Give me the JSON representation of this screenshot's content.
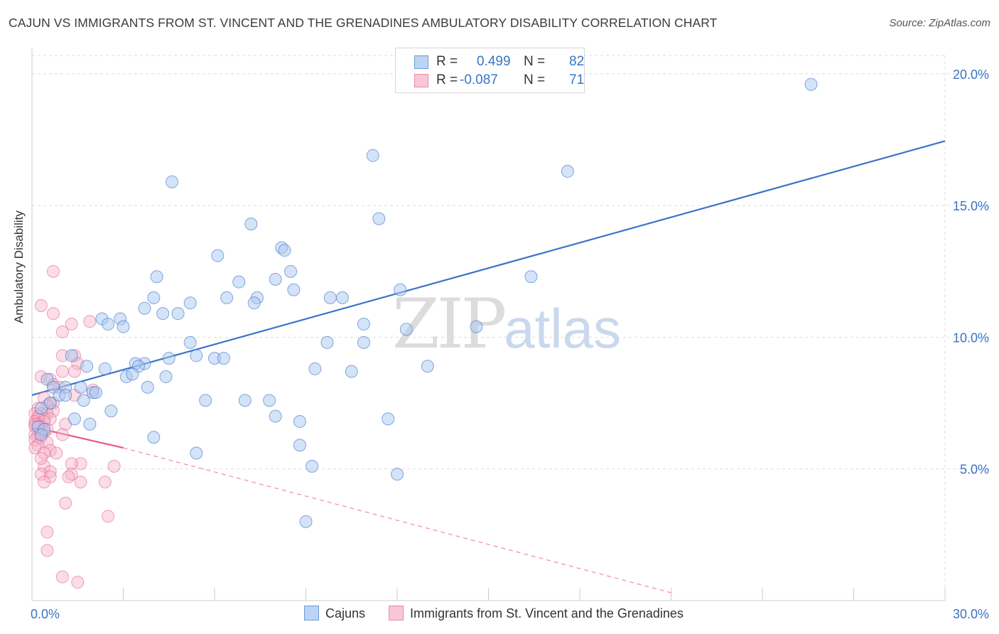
{
  "title": "CAJUN VS IMMIGRANTS FROM ST. VINCENT AND THE GRENADINES AMBULATORY DISABILITY CORRELATION CHART",
  "source": "Source: ZipAtlas.com",
  "watermark": {
    "zip": "ZIP",
    "atlas": "atlas"
  },
  "colors": {
    "blue": "#3a73c8",
    "blue_fill": "#a9c8f0",
    "pink": "#e8588a",
    "pink_fill": "#f5b3c8",
    "grid": "#dddddd"
  },
  "legend": {
    "r_label": "R =",
    "n_label": "N =",
    "rows": [
      {
        "r": "0.499",
        "n": "82"
      },
      {
        "r": "-0.087",
        "n": "71"
      }
    ]
  },
  "chart_data": {
    "type": "scatter",
    "title": "CAJUN VS IMMIGRANTS FROM ST. VINCENT AND THE GRENADINES AMBULATORY DISABILITY CORRELATION CHART",
    "xlabel": "",
    "ylabel": "Ambulatory Disability",
    "xlim": [
      0,
      30
    ],
    "ylim": [
      0,
      20.7
    ],
    "x_tick_labels": [
      "0.0%",
      "30.0%"
    ],
    "y_ticks": [
      5,
      10,
      15,
      20
    ],
    "y_tick_labels": [
      "5.0%",
      "10.0%",
      "15.0%",
      "20.0%"
    ],
    "grid": true,
    "legend_position": "bottom",
    "series": [
      {
        "name": "Cajuns",
        "color": "#3a73c8",
        "r": 0.499,
        "n": 82,
        "trend": {
          "x": [
            0,
            30
          ],
          "y": [
            7.8,
            17.45
          ],
          "style": "solid"
        },
        "points": [
          [
            25.6,
            19.6
          ],
          [
            11.2,
            16.9
          ],
          [
            17.6,
            16.3
          ],
          [
            4.6,
            15.9
          ],
          [
            11.4,
            14.5
          ],
          [
            7.2,
            14.3
          ],
          [
            8.2,
            13.4
          ],
          [
            8.3,
            13.3
          ],
          [
            6.1,
            13.1
          ],
          [
            8.5,
            12.5
          ],
          [
            4.1,
            12.3
          ],
          [
            8.0,
            12.2
          ],
          [
            16.4,
            12.3
          ],
          [
            6.8,
            12.1
          ],
          [
            12.1,
            11.8
          ],
          [
            8.6,
            11.8
          ],
          [
            4.0,
            11.5
          ],
          [
            5.2,
            11.3
          ],
          [
            6.4,
            11.5
          ],
          [
            7.4,
            11.5
          ],
          [
            7.3,
            11.3
          ],
          [
            9.8,
            11.5
          ],
          [
            10.2,
            11.5
          ],
          [
            3.7,
            11.1
          ],
          [
            4.3,
            10.9
          ],
          [
            4.8,
            10.9
          ],
          [
            2.3,
            10.7
          ],
          [
            2.9,
            10.7
          ],
          [
            2.5,
            10.5
          ],
          [
            3.0,
            10.4
          ],
          [
            10.9,
            10.5
          ],
          [
            14.6,
            10.4
          ],
          [
            12.3,
            10.3
          ],
          [
            5.2,
            9.8
          ],
          [
            9.7,
            9.8
          ],
          [
            10.9,
            9.8
          ],
          [
            5.4,
            9.3
          ],
          [
            6.0,
            9.2
          ],
          [
            6.3,
            9.2
          ],
          [
            4.5,
            9.2
          ],
          [
            1.3,
            9.3
          ],
          [
            3.7,
            9.0
          ],
          [
            3.4,
            9.0
          ],
          [
            3.5,
            8.9
          ],
          [
            1.8,
            8.9
          ],
          [
            2.4,
            8.8
          ],
          [
            9.3,
            8.8
          ],
          [
            10.5,
            8.7
          ],
          [
            13.0,
            8.9
          ],
          [
            3.1,
            8.5
          ],
          [
            3.3,
            8.6
          ],
          [
            4.4,
            8.5
          ],
          [
            0.5,
            8.4
          ],
          [
            0.7,
            8.1
          ],
          [
            1.1,
            8.1
          ],
          [
            1.6,
            8.1
          ],
          [
            3.8,
            8.1
          ],
          [
            2.0,
            7.9
          ],
          [
            2.1,
            7.9
          ],
          [
            0.9,
            7.8
          ],
          [
            1.1,
            7.8
          ],
          [
            1.7,
            7.6
          ],
          [
            5.7,
            7.6
          ],
          [
            7.0,
            7.6
          ],
          [
            7.8,
            7.6
          ],
          [
            0.6,
            7.5
          ],
          [
            0.3,
            7.3
          ],
          [
            2.6,
            7.2
          ],
          [
            1.4,
            6.9
          ],
          [
            8.0,
            7.0
          ],
          [
            8.8,
            6.8
          ],
          [
            11.7,
            6.9
          ],
          [
            1.9,
            6.7
          ],
          [
            0.2,
            6.6
          ],
          [
            0.4,
            6.5
          ],
          [
            4.0,
            6.2
          ],
          [
            8.8,
            5.9
          ],
          [
            5.4,
            5.6
          ],
          [
            9.2,
            5.1
          ],
          [
            12.0,
            4.8
          ],
          [
            9.0,
            3.0
          ],
          [
            0.3,
            6.3
          ]
        ]
      },
      {
        "name": "Immigrants from St. Vincent and the Grenadines",
        "color": "#e8588a",
        "r": -0.087,
        "n": 71,
        "trend_solid": {
          "x": [
            0,
            3.0
          ],
          "y": [
            6.6,
            5.8
          ]
        },
        "trend_dashed": {
          "x": [
            3.0,
            21.0
          ],
          "y": [
            5.8,
            0.3
          ]
        },
        "points": [
          [
            0.7,
            12.5
          ],
          [
            0.3,
            11.2
          ],
          [
            0.7,
            10.9
          ],
          [
            1.9,
            10.6
          ],
          [
            1.3,
            10.5
          ],
          [
            1.0,
            10.2
          ],
          [
            1.0,
            9.3
          ],
          [
            1.4,
            9.3
          ],
          [
            1.5,
            9.0
          ],
          [
            1.4,
            8.7
          ],
          [
            1.0,
            8.7
          ],
          [
            0.3,
            8.5
          ],
          [
            0.6,
            8.4
          ],
          [
            0.7,
            8.2
          ],
          [
            0.9,
            8.1
          ],
          [
            2.0,
            8.0
          ],
          [
            1.4,
            7.8
          ],
          [
            0.4,
            7.7
          ],
          [
            0.6,
            7.5
          ],
          [
            0.7,
            7.5
          ],
          [
            0.5,
            7.4
          ],
          [
            0.2,
            7.3
          ],
          [
            0.7,
            7.2
          ],
          [
            0.3,
            7.1
          ],
          [
            0.1,
            7.1
          ],
          [
            0.5,
            7.1
          ],
          [
            0.2,
            7.0
          ],
          [
            0.4,
            6.9
          ],
          [
            0.6,
            6.9
          ],
          [
            0.2,
            6.9
          ],
          [
            0.1,
            6.8
          ],
          [
            0.4,
            6.8
          ],
          [
            0.2,
            6.7
          ],
          [
            0.1,
            6.7
          ],
          [
            0.3,
            6.6
          ],
          [
            0.2,
            6.6
          ],
          [
            0.1,
            6.6
          ],
          [
            0.5,
            6.5
          ],
          [
            0.3,
            6.4
          ],
          [
            0.4,
            6.4
          ],
          [
            0.2,
            6.3
          ],
          [
            0.1,
            6.3
          ],
          [
            1.1,
            6.7
          ],
          [
            1.0,
            6.3
          ],
          [
            0.3,
            6.2
          ],
          [
            0.1,
            6.1
          ],
          [
            0.5,
            6.0
          ],
          [
            0.2,
            5.9
          ],
          [
            0.1,
            5.8
          ],
          [
            0.6,
            5.7
          ],
          [
            0.4,
            5.6
          ],
          [
            0.8,
            5.6
          ],
          [
            1.6,
            5.2
          ],
          [
            1.3,
            5.2
          ],
          [
            2.7,
            5.1
          ],
          [
            0.4,
            5.1
          ],
          [
            0.6,
            4.9
          ],
          [
            1.3,
            4.8
          ],
          [
            0.3,
            4.8
          ],
          [
            0.6,
            4.7
          ],
          [
            1.2,
            4.7
          ],
          [
            0.4,
            4.5
          ],
          [
            1.6,
            4.5
          ],
          [
            2.4,
            4.5
          ],
          [
            1.1,
            3.7
          ],
          [
            2.5,
            3.2
          ],
          [
            0.5,
            2.6
          ],
          [
            0.5,
            1.9
          ],
          [
            1.0,
            0.9
          ],
          [
            1.5,
            0.7
          ],
          [
            0.3,
            5.4
          ]
        ]
      }
    ]
  }
}
